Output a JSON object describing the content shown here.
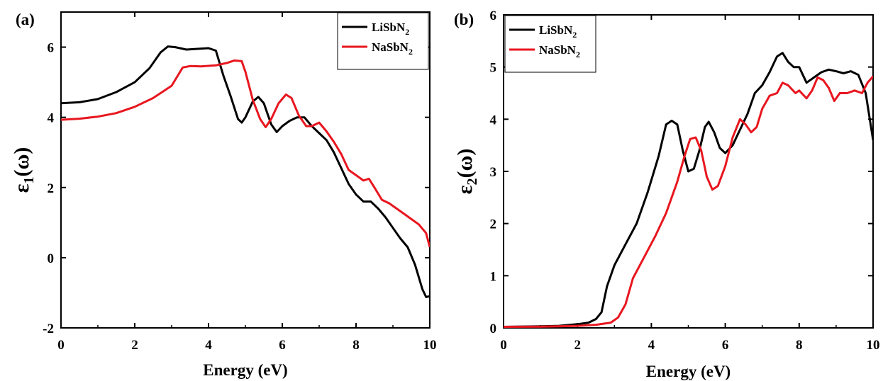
{
  "chart_data": [
    {
      "panel_label": "(a)",
      "type": "line",
      "xlabel": "Energy (eV)",
      "ylabel_main": "ε",
      "ylabel_sub": "1",
      "ylabel_tail": "(ω)",
      "xlim": [
        0,
        10
      ],
      "ylim": [
        -2,
        7
      ],
      "xticks": [
        0,
        2,
        4,
        6,
        8,
        10
      ],
      "yticks": [
        -2,
        0,
        2,
        4,
        6
      ],
      "legend_position": "top-right",
      "series": [
        {
          "name": "LiSbN",
          "name_sub": "2",
          "color": "#000000",
          "points": [
            [
              0,
              4.4
            ],
            [
              0.5,
              4.43
            ],
            [
              1.0,
              4.52
            ],
            [
              1.5,
              4.72
            ],
            [
              2.0,
              5.0
            ],
            [
              2.4,
              5.4
            ],
            [
              2.7,
              5.85
            ],
            [
              2.9,
              6.02
            ],
            [
              3.1,
              6.0
            ],
            [
              3.4,
              5.93
            ],
            [
              3.7,
              5.95
            ],
            [
              4.0,
              5.97
            ],
            [
              4.2,
              5.9
            ],
            [
              4.4,
              5.2
            ],
            [
              4.6,
              4.6
            ],
            [
              4.8,
              3.95
            ],
            [
              4.9,
              3.85
            ],
            [
              5.0,
              4.0
            ],
            [
              5.2,
              4.45
            ],
            [
              5.35,
              4.58
            ],
            [
              5.5,
              4.4
            ],
            [
              5.7,
              3.8
            ],
            [
              5.85,
              3.58
            ],
            [
              6.0,
              3.75
            ],
            [
              6.2,
              3.9
            ],
            [
              6.4,
              4.0
            ],
            [
              6.6,
              4.0
            ],
            [
              6.8,
              3.75
            ],
            [
              7.0,
              3.55
            ],
            [
              7.2,
              3.35
            ],
            [
              7.4,
              3.0
            ],
            [
              7.6,
              2.55
            ],
            [
              7.8,
              2.1
            ],
            [
              8.0,
              1.8
            ],
            [
              8.2,
              1.6
            ],
            [
              8.4,
              1.6
            ],
            [
              8.6,
              1.4
            ],
            [
              8.8,
              1.15
            ],
            [
              9.0,
              0.85
            ],
            [
              9.2,
              0.55
            ],
            [
              9.4,
              0.3
            ],
            [
              9.6,
              -0.2
            ],
            [
              9.8,
              -0.9
            ],
            [
              9.9,
              -1.12
            ],
            [
              10.0,
              -1.1
            ]
          ]
        },
        {
          "name": "NaSbN",
          "name_sub": "2",
          "color": "#e8161f",
          "points": [
            [
              0,
              3.93
            ],
            [
              0.5,
              3.96
            ],
            [
              1.0,
              4.02
            ],
            [
              1.5,
              4.12
            ],
            [
              2.0,
              4.3
            ],
            [
              2.5,
              4.55
            ],
            [
              3.0,
              4.9
            ],
            [
              3.3,
              5.42
            ],
            [
              3.5,
              5.46
            ],
            [
              3.8,
              5.45
            ],
            [
              4.2,
              5.48
            ],
            [
              4.5,
              5.55
            ],
            [
              4.7,
              5.62
            ],
            [
              4.9,
              5.6
            ],
            [
              5.0,
              5.3
            ],
            [
              5.2,
              4.5
            ],
            [
              5.4,
              3.95
            ],
            [
              5.55,
              3.72
            ],
            [
              5.7,
              3.95
            ],
            [
              5.9,
              4.4
            ],
            [
              6.1,
              4.65
            ],
            [
              6.25,
              4.55
            ],
            [
              6.45,
              4.05
            ],
            [
              6.65,
              3.75
            ],
            [
              6.8,
              3.75
            ],
            [
              7.0,
              3.85
            ],
            [
              7.2,
              3.6
            ],
            [
              7.4,
              3.3
            ],
            [
              7.6,
              2.95
            ],
            [
              7.8,
              2.5
            ],
            [
              8.0,
              2.35
            ],
            [
              8.2,
              2.2
            ],
            [
              8.35,
              2.25
            ],
            [
              8.5,
              2.0
            ],
            [
              8.7,
              1.65
            ],
            [
              8.9,
              1.55
            ],
            [
              9.1,
              1.4
            ],
            [
              9.3,
              1.25
            ],
            [
              9.5,
              1.1
            ],
            [
              9.7,
              0.95
            ],
            [
              9.9,
              0.7
            ],
            [
              10.0,
              0.3
            ]
          ]
        }
      ]
    },
    {
      "panel_label": "(b)",
      "type": "line",
      "xlabel": "Energy (eV)",
      "ylabel_main": "ε",
      "ylabel_sub": "2",
      "ylabel_tail": "(ω)",
      "xlim": [
        0,
        10
      ],
      "ylim": [
        0,
        6
      ],
      "xticks": [
        0,
        2,
        4,
        6,
        8,
        10
      ],
      "yticks": [
        0,
        1,
        2,
        3,
        4,
        5,
        6
      ],
      "legend_position": "top-left",
      "series": [
        {
          "name": "LiSbN",
          "name_sub": "2",
          "color": "#000000",
          "points": [
            [
              0,
              0.02
            ],
            [
              1.0,
              0.03
            ],
            [
              1.5,
              0.04
            ],
            [
              2.0,
              0.07
            ],
            [
              2.3,
              0.1
            ],
            [
              2.5,
              0.17
            ],
            [
              2.65,
              0.3
            ],
            [
              2.8,
              0.8
            ],
            [
              3.0,
              1.2
            ],
            [
              3.3,
              1.6
            ],
            [
              3.6,
              2.0
            ],
            [
              3.9,
              2.6
            ],
            [
              4.2,
              3.3
            ],
            [
              4.4,
              3.9
            ],
            [
              4.55,
              3.97
            ],
            [
              4.7,
              3.9
            ],
            [
              4.85,
              3.4
            ],
            [
              5.0,
              3.0
            ],
            [
              5.15,
              3.05
            ],
            [
              5.3,
              3.4
            ],
            [
              5.45,
              3.85
            ],
            [
              5.55,
              3.95
            ],
            [
              5.7,
              3.75
            ],
            [
              5.85,
              3.45
            ],
            [
              6.0,
              3.35
            ],
            [
              6.2,
              3.5
            ],
            [
              6.4,
              3.8
            ],
            [
              6.6,
              4.1
            ],
            [
              6.8,
              4.5
            ],
            [
              7.0,
              4.65
            ],
            [
              7.2,
              4.9
            ],
            [
              7.4,
              5.2
            ],
            [
              7.55,
              5.27
            ],
            [
              7.7,
              5.1
            ],
            [
              7.85,
              5.0
            ],
            [
              8.0,
              5.0
            ],
            [
              8.2,
              4.7
            ],
            [
              8.4,
              4.8
            ],
            [
              8.6,
              4.9
            ],
            [
              8.8,
              4.95
            ],
            [
              9.0,
              4.92
            ],
            [
              9.2,
              4.88
            ],
            [
              9.4,
              4.92
            ],
            [
              9.6,
              4.85
            ],
            [
              9.8,
              4.5
            ],
            [
              10.0,
              3.6
            ]
          ]
        },
        {
          "name": "NaSbN",
          "name_sub": "2",
          "color": "#e8161f",
          "points": [
            [
              0,
              0.02
            ],
            [
              1.0,
              0.025
            ],
            [
              2.0,
              0.04
            ],
            [
              2.5,
              0.06
            ],
            [
              2.9,
              0.1
            ],
            [
              3.1,
              0.2
            ],
            [
              3.3,
              0.45
            ],
            [
              3.5,
              0.95
            ],
            [
              3.8,
              1.35
            ],
            [
              4.1,
              1.75
            ],
            [
              4.4,
              2.2
            ],
            [
              4.7,
              2.8
            ],
            [
              4.9,
              3.3
            ],
            [
              5.05,
              3.62
            ],
            [
              5.2,
              3.65
            ],
            [
              5.35,
              3.4
            ],
            [
              5.5,
              2.9
            ],
            [
              5.65,
              2.65
            ],
            [
              5.8,
              2.72
            ],
            [
              6.0,
              3.1
            ],
            [
              6.2,
              3.65
            ],
            [
              6.4,
              4.0
            ],
            [
              6.55,
              3.9
            ],
            [
              6.7,
              3.75
            ],
            [
              6.85,
              3.85
            ],
            [
              7.0,
              4.2
            ],
            [
              7.2,
              4.45
            ],
            [
              7.4,
              4.5
            ],
            [
              7.55,
              4.7
            ],
            [
              7.7,
              4.65
            ],
            [
              7.9,
              4.5
            ],
            [
              8.0,
              4.55
            ],
            [
              8.2,
              4.4
            ],
            [
              8.35,
              4.55
            ],
            [
              8.5,
              4.8
            ],
            [
              8.65,
              4.75
            ],
            [
              8.8,
              4.6
            ],
            [
              8.95,
              4.35
            ],
            [
              9.1,
              4.5
            ],
            [
              9.3,
              4.5
            ],
            [
              9.5,
              4.55
            ],
            [
              9.7,
              4.5
            ],
            [
              9.85,
              4.7
            ],
            [
              10.0,
              4.82
            ]
          ]
        }
      ]
    }
  ]
}
